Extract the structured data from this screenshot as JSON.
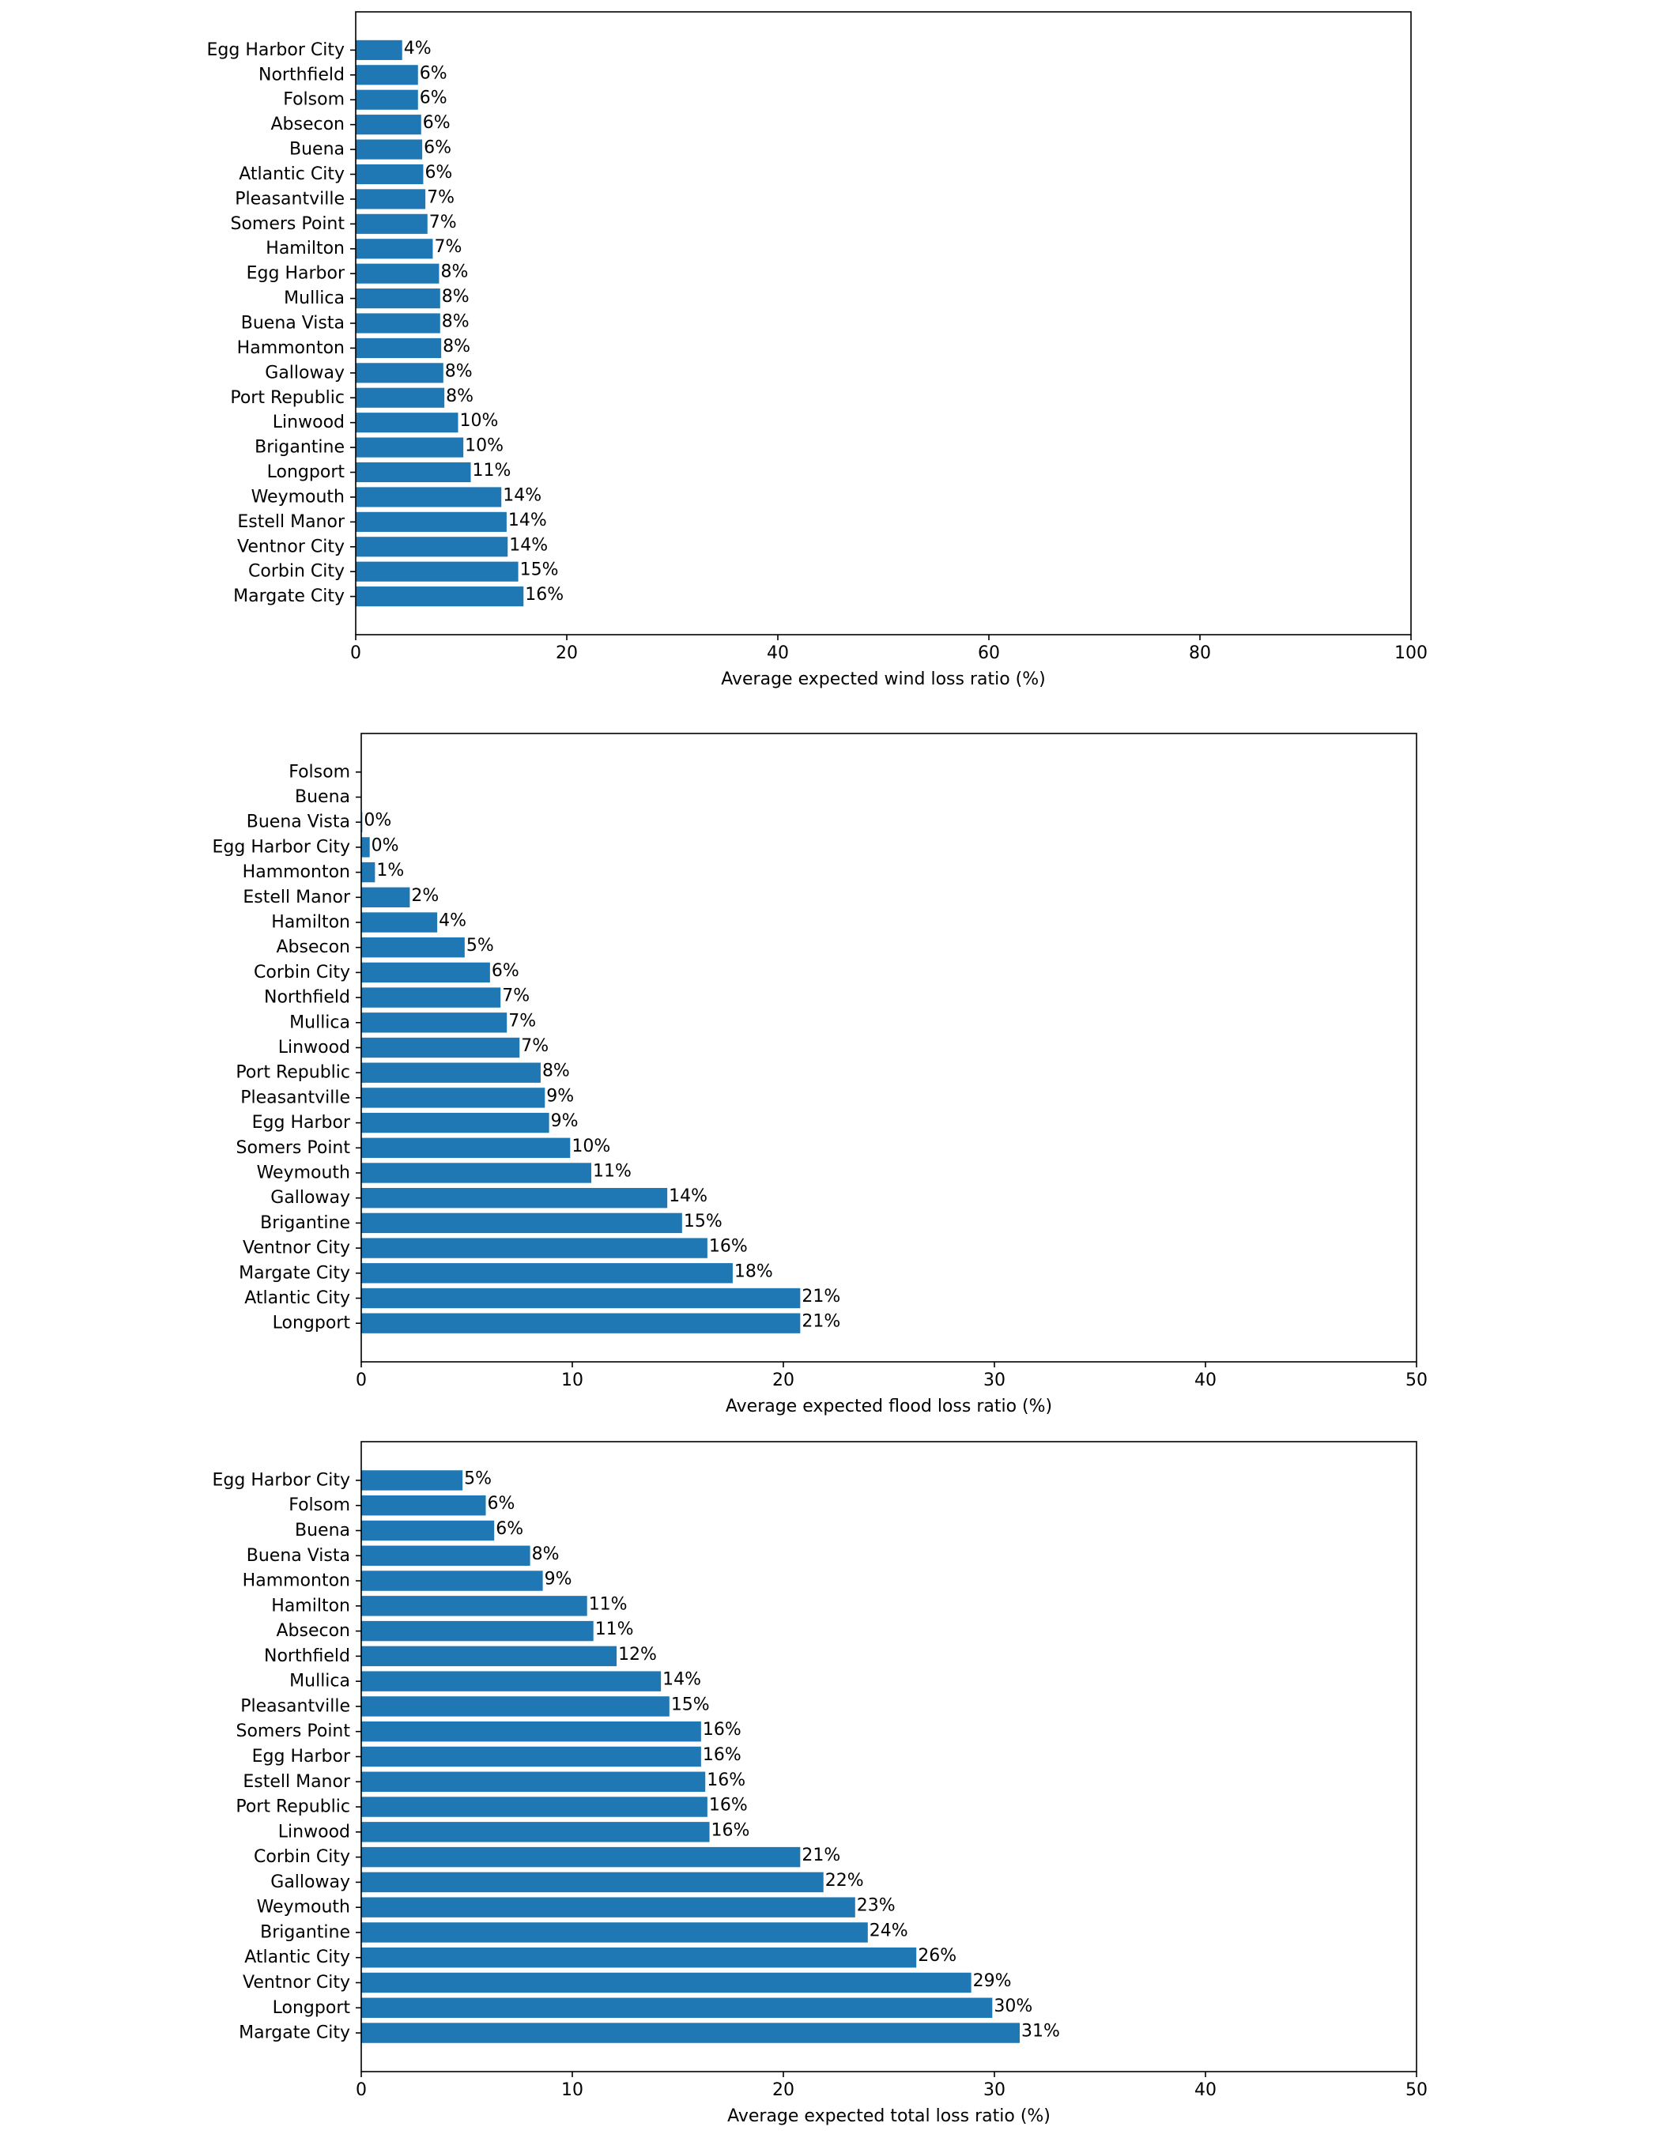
{
  "bar_color": "#1f77b4",
  "chart_data": [
    {
      "type": "bar",
      "orientation": "horizontal",
      "title": "",
      "xlabel": "Average expected wind loss ratio (%)",
      "ylabel": "",
      "xlim": [
        0,
        100
      ],
      "xticks": [
        "0",
        "20",
        "40",
        "60",
        "80",
        "100"
      ],
      "grid": false,
      "categories": [
        "Egg Harbor City",
        "Northfield",
        "Folsom",
        "Absecon",
        "Buena",
        "Atlantic City",
        "Pleasantville",
        "Somers Point",
        "Hamilton",
        "Egg Harbor",
        "Mullica",
        "Buena Vista",
        "Hammonton",
        "Galloway",
        "Port Republic",
        "Linwood",
        "Brigantine",
        "Longport",
        "Weymouth",
        "Estell Manor",
        "Ventnor City",
        "Corbin City",
        "Margate City"
      ],
      "values": [
        4.4,
        5.9,
        5.9,
        6.2,
        6.3,
        6.4,
        6.6,
        6.8,
        7.3,
        7.9,
        8.0,
        8.0,
        8.1,
        8.3,
        8.4,
        9.7,
        10.2,
        10.9,
        13.8,
        14.3,
        14.4,
        15.4,
        15.9
      ],
      "labels": [
        "4%",
        "6%",
        "6%",
        "6%",
        "6%",
        "6%",
        "7%",
        "7%",
        "7%",
        "8%",
        "8%",
        "8%",
        "8%",
        "8%",
        "8%",
        "10%",
        "10%",
        "11%",
        "14%",
        "14%",
        "14%",
        "15%",
        "16%"
      ]
    },
    {
      "type": "bar",
      "orientation": "horizontal",
      "title": "",
      "xlabel": "Average expected flood loss ratio (%)",
      "ylabel": "",
      "xlim": [
        0,
        50
      ],
      "xticks": [
        "0",
        "10",
        "20",
        "30",
        "40",
        "50"
      ],
      "grid": false,
      "categories": [
        "Folsom",
        "Buena",
        "Buena Vista",
        "Egg Harbor City",
        "Hammonton",
        "Estell Manor",
        "Hamilton",
        "Absecon",
        "Corbin City",
        "Northfield",
        "Mullica",
        "Linwood",
        "Port Republic",
        "Pleasantville",
        "Egg Harbor",
        "Somers Point",
        "Weymouth",
        "Galloway",
        "Brigantine",
        "Ventnor City",
        "Margate City",
        "Atlantic City",
        "Longport"
      ],
      "values": [
        0,
        0,
        0.05,
        0.4,
        0.65,
        2.3,
        3.6,
        4.9,
        6.1,
        6.6,
        6.9,
        7.5,
        8.5,
        8.7,
        8.9,
        9.9,
        10.9,
        14.5,
        15.2,
        16.4,
        17.6,
        20.8,
        20.8
      ],
      "labels": [
        "",
        "",
        "0%",
        "0%",
        "1%",
        "2%",
        "4%",
        "5%",
        "6%",
        "7%",
        "7%",
        "7%",
        "8%",
        "9%",
        "9%",
        "10%",
        "11%",
        "14%",
        "15%",
        "16%",
        "18%",
        "21%",
        "21%"
      ]
    },
    {
      "type": "bar",
      "orientation": "horizontal",
      "title": "",
      "xlabel": "Average expected total loss ratio (%)",
      "ylabel": "",
      "xlim": [
        0,
        50
      ],
      "xticks": [
        "0",
        "10",
        "20",
        "30",
        "40",
        "50"
      ],
      "grid": false,
      "categories": [
        "Egg Harbor City",
        "Folsom",
        "Buena",
        "Buena Vista",
        "Hammonton",
        "Hamilton",
        "Absecon",
        "Northfield",
        "Mullica",
        "Pleasantville",
        "Somers Point",
        "Egg Harbor",
        "Estell Manor",
        "Port Republic",
        "Linwood",
        "Corbin City",
        "Galloway",
        "Weymouth",
        "Brigantine",
        "Atlantic City",
        "Ventnor City",
        "Longport",
        "Margate City"
      ],
      "values": [
        4.8,
        5.9,
        6.3,
        8.0,
        8.6,
        10.7,
        11.0,
        12.1,
        14.2,
        14.6,
        16.1,
        16.1,
        16.3,
        16.4,
        16.5,
        20.8,
        21.9,
        23.4,
        24.0,
        26.3,
        28.9,
        29.9,
        31.2
      ],
      "labels": [
        "5%",
        "6%",
        "6%",
        "8%",
        "9%",
        "11%",
        "11%",
        "12%",
        "14%",
        "15%",
        "16%",
        "16%",
        "16%",
        "16%",
        "16%",
        "21%",
        "22%",
        "23%",
        "24%",
        "26%",
        "29%",
        "30%",
        "31%"
      ]
    }
  ]
}
